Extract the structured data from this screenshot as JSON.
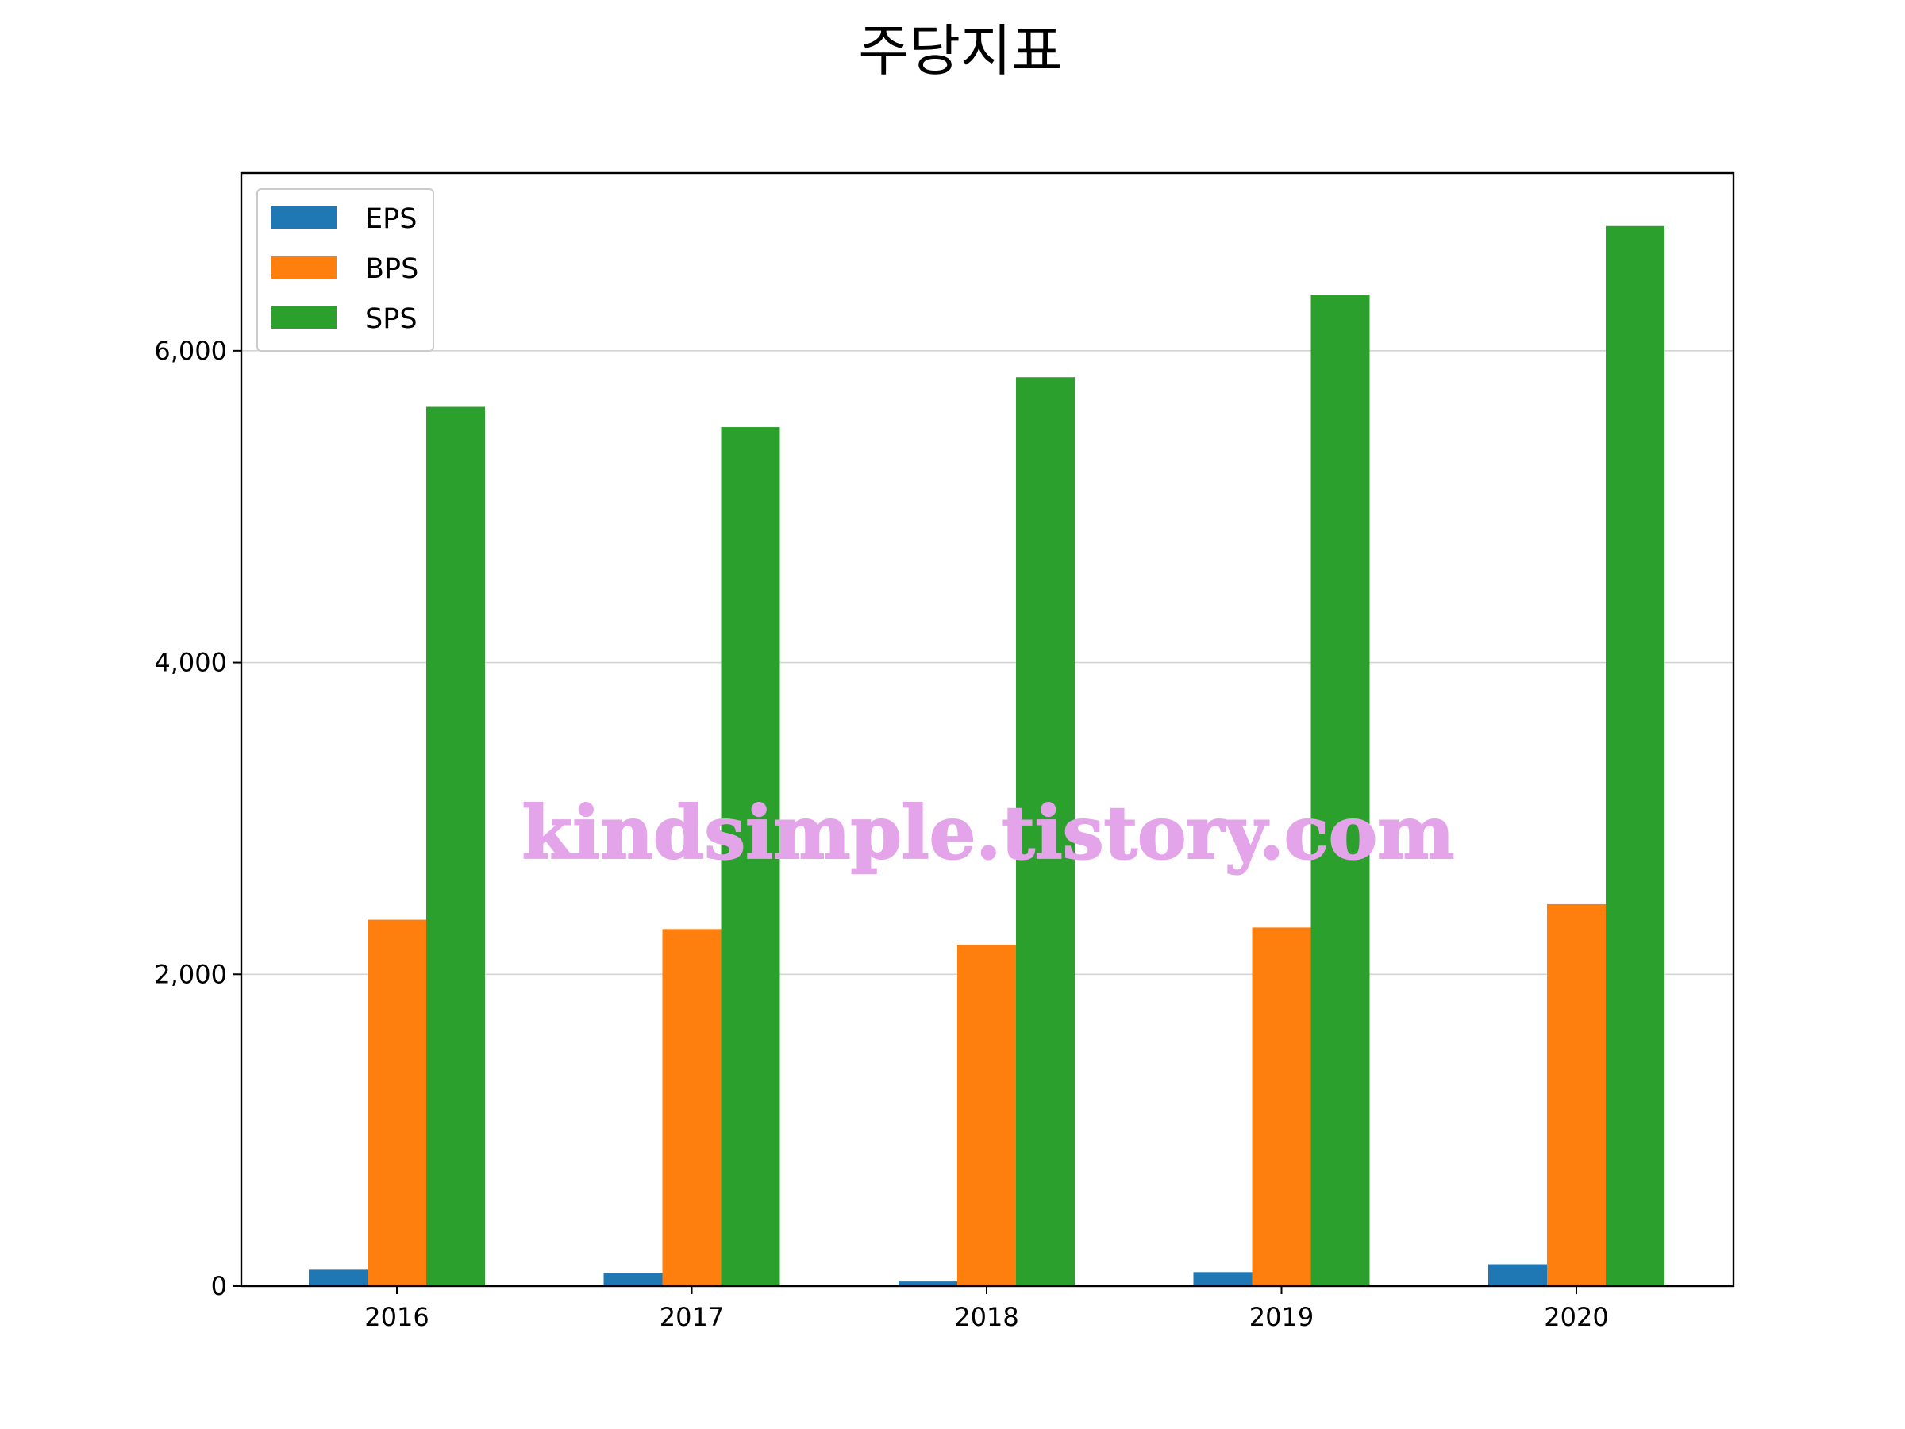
{
  "chart_data": {
    "type": "bar",
    "title": "주당지표",
    "categories": [
      "2016",
      "2017",
      "2018",
      "2019",
      "2020"
    ],
    "series": [
      {
        "name": "EPS",
        "color": "#1f77b4",
        "values": [
          105,
          85,
          30,
          90,
          140
        ]
      },
      {
        "name": "BPS",
        "color": "#ff7f0e",
        "values": [
          2350,
          2290,
          2190,
          2300,
          2450
        ]
      },
      {
        "name": "SPS",
        "color": "#2ca02c",
        "values": [
          5640,
          5510,
          5830,
          6360,
          6800
        ]
      }
    ],
    "ylim": [
      0,
      7140
    ],
    "yticks": [
      0,
      2000,
      4000,
      6000
    ],
    "ytick_labels": [
      "0",
      "2,000",
      "4,000",
      "6,000"
    ],
    "grid": "y",
    "legend_position": "top-left",
    "watermark": "kindsimple.tistory.com"
  }
}
